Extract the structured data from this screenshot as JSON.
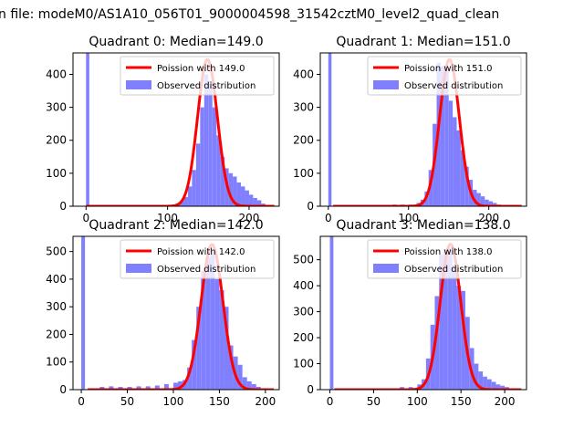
{
  "suptitle": "n file: modeM0/AS1A10_056T01_9000004598_31542cztM0_level2_quad_clean",
  "legend_labels": {
    "fit_prefix": "Poission with",
    "observed": "Observed distribution"
  },
  "colors": {
    "poisson": "#ff0000",
    "hist": "#8080ff",
    "hist_line": "#0000ff"
  },
  "chart_data": [
    {
      "type": "bar",
      "title": "Quadrant 0: Median=149.0",
      "median": 149.0,
      "fit_label": "Poission with 149.0",
      "xlim": [
        -16,
        237
      ],
      "ylim": [
        0,
        465
      ],
      "xticks": [
        0,
        100,
        200
      ],
      "yticks": [
        0,
        100,
        200,
        300,
        400
      ],
      "zero_bin": {
        "x": 0,
        "value": 465
      },
      "bin_width": 5,
      "bins": [
        [
          100,
          3
        ],
        [
          105,
          5
        ],
        [
          110,
          8
        ],
        [
          115,
          15
        ],
        [
          120,
          28
        ],
        [
          125,
          60
        ],
        [
          130,
          110
        ],
        [
          135,
          190
        ],
        [
          140,
          300
        ],
        [
          145,
          400
        ],
        [
          150,
          380
        ],
        [
          155,
          300
        ],
        [
          160,
          215
        ],
        [
          165,
          150
        ],
        [
          170,
          115
        ],
        [
          175,
          100
        ],
        [
          180,
          90
        ],
        [
          185,
          72
        ],
        [
          190,
          60
        ],
        [
          195,
          48
        ],
        [
          200,
          35
        ],
        [
          205,
          25
        ],
        [
          210,
          18
        ],
        [
          215,
          8
        ],
        [
          220,
          4
        ]
      ],
      "poisson_peak": 445
    },
    {
      "type": "bar",
      "title": "Quadrant 1: Median=151.0",
      "median": 151.0,
      "fit_label": "Poission with 151.0",
      "xlim": [
        -10,
        247
      ],
      "ylim": [
        0,
        465
      ],
      "xticks": [
        0,
        100,
        200
      ],
      "yticks": [
        0,
        100,
        200,
        300,
        400
      ],
      "zero_bin": {
        "x": 0,
        "value": 465
      },
      "bin_width": 5,
      "bins": [
        [
          80,
          5
        ],
        [
          90,
          5
        ],
        [
          100,
          5
        ],
        [
          110,
          10
        ],
        [
          115,
          20
        ],
        [
          120,
          45
        ],
        [
          125,
          110
        ],
        [
          130,
          250
        ],
        [
          135,
          435
        ],
        [
          140,
          425
        ],
        [
          145,
          410
        ],
        [
          150,
          320
        ],
        [
          155,
          270
        ],
        [
          160,
          230
        ],
        [
          165,
          170
        ],
        [
          170,
          120
        ],
        [
          175,
          80
        ],
        [
          180,
          50
        ],
        [
          185,
          40
        ],
        [
          190,
          30
        ],
        [
          195,
          20
        ],
        [
          200,
          15
        ],
        [
          205,
          10
        ],
        [
          210,
          5
        ]
      ],
      "poisson_peak": 445
    },
    {
      "type": "bar",
      "title": "Quadrant 2: Median=142.0",
      "median": 142.0,
      "fit_label": "Poission with 142.0",
      "xlim": [
        -9,
        215
      ],
      "ylim": [
        0,
        555
      ],
      "xticks": [
        0,
        50,
        100,
        150,
        200
      ],
      "yticks": [
        0,
        100,
        200,
        300,
        400,
        500
      ],
      "zero_bin": {
        "x": 0,
        "value": 555
      },
      "bin_width": 5,
      "bins": [
        [
          20,
          10
        ],
        [
          30,
          12
        ],
        [
          40,
          10
        ],
        [
          50,
          10
        ],
        [
          60,
          12
        ],
        [
          70,
          12
        ],
        [
          80,
          15
        ],
        [
          90,
          20
        ],
        [
          100,
          25
        ],
        [
          105,
          30
        ],
        [
          110,
          35
        ],
        [
          115,
          80
        ],
        [
          120,
          180
        ],
        [
          125,
          300
        ],
        [
          130,
          430
        ],
        [
          135,
          480
        ],
        [
          140,
          500
        ],
        [
          145,
          400
        ],
        [
          150,
          360
        ],
        [
          155,
          300
        ],
        [
          160,
          160
        ],
        [
          165,
          120
        ],
        [
          170,
          90
        ],
        [
          175,
          45
        ],
        [
          180,
          30
        ],
        [
          185,
          20
        ],
        [
          190,
          10
        ],
        [
          195,
          5
        ]
      ],
      "poisson_peak": 525
    },
    {
      "type": "bar",
      "title": "Quadrant 3: Median=138.0",
      "median": 138.0,
      "fit_label": "Poission with 138.0",
      "xlim": [
        -11,
        225
      ],
      "ylim": [
        0,
        590
      ],
      "xticks": [
        0,
        50,
        100,
        150,
        200
      ],
      "yticks": [
        0,
        100,
        200,
        300,
        400,
        500
      ],
      "zero_bin": {
        "x": 0,
        "value": 590
      },
      "bin_width": 5,
      "bins": [
        [
          60,
          5
        ],
        [
          80,
          10
        ],
        [
          90,
          10
        ],
        [
          100,
          20
        ],
        [
          105,
          40
        ],
        [
          110,
          120
        ],
        [
          115,
          250
        ],
        [
          120,
          360
        ],
        [
          125,
          520
        ],
        [
          130,
          540
        ],
        [
          135,
          545
        ],
        [
          140,
          480
        ],
        [
          145,
          400
        ],
        [
          150,
          380
        ],
        [
          155,
          280
        ],
        [
          160,
          160
        ],
        [
          165,
          100
        ],
        [
          170,
          70
        ],
        [
          175,
          50
        ],
        [
          180,
          40
        ],
        [
          185,
          30
        ],
        [
          190,
          20
        ],
        [
          195,
          15
        ],
        [
          200,
          10
        ],
        [
          205,
          5
        ]
      ],
      "poisson_peak": 560
    }
  ]
}
